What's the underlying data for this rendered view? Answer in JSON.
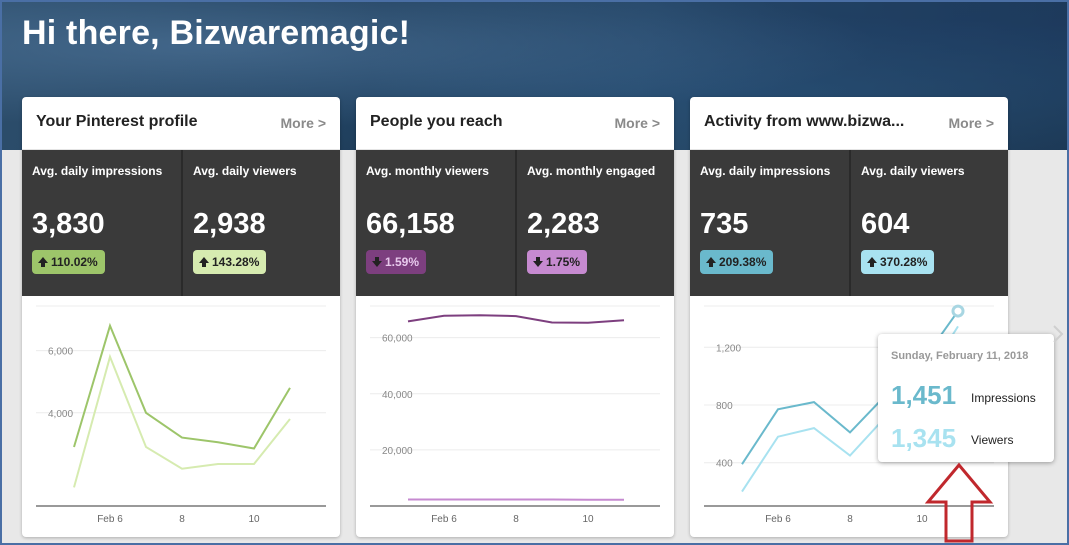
{
  "greeting": "Hi there, Bizwaremagic!",
  "cards": [
    {
      "title": "Your Pinterest profile",
      "more": "More >",
      "stats": [
        {
          "label": "Avg. daily impressions",
          "value": "3,830",
          "change": "110.02%",
          "direction": "up",
          "badge_color": "#9dc56a"
        },
        {
          "label": "Avg. daily viewers",
          "value": "2,938",
          "change": "143.28%",
          "direction": "up",
          "badge_color": "#d6ebb0"
        }
      ]
    },
    {
      "title": "People you reach",
      "more": "More >",
      "stats": [
        {
          "label": "Avg. monthly viewers",
          "value": "66,158",
          "change": "1.59%",
          "direction": "down",
          "badge_color": "#7d3f7f"
        },
        {
          "label": "Avg. monthly engaged",
          "value": "2,283",
          "change": "1.75%",
          "direction": "down",
          "badge_color": "#c68ad0"
        }
      ]
    },
    {
      "title": "Activity from www.bizwa...",
      "more": "More >",
      "stats": [
        {
          "label": "Avg. daily impressions",
          "value": "735",
          "change": "209.38%",
          "direction": "up",
          "badge_color": "#6ab9cc"
        },
        {
          "label": "Avg. daily viewers",
          "value": "604",
          "change": "370.28%",
          "direction": "up",
          "badge_color": "#a8e2f0"
        }
      ]
    }
  ],
  "chart_data": [
    {
      "type": "line",
      "x": [
        "Feb 5",
        "Feb 6",
        "Feb 7",
        "Feb 8",
        "Feb 9",
        "Feb 10",
        "Feb 11"
      ],
      "x_tick_labels": [
        "Feb 6",
        "8",
        "10"
      ],
      "y_tick_labels": [
        "4,000",
        "6,000"
      ],
      "ylim": [
        1000,
        7500
      ],
      "series": [
        {
          "values": [
            2900,
            6800,
            4000,
            3200,
            3050,
            2850,
            4800
          ],
          "color": "#9dc56a"
        },
        {
          "values": [
            1600,
            5800,
            2900,
            2200,
            2350,
            2350,
            3800
          ],
          "color": "#d6ebb0"
        }
      ]
    },
    {
      "type": "line",
      "x": [
        "Feb 5",
        "Feb 6",
        "Feb 7",
        "Feb 8",
        "Feb 9",
        "Feb 10",
        "Feb 11"
      ],
      "x_tick_labels": [
        "Feb 6",
        "8",
        "10"
      ],
      "y_tick_labels": [
        "20,000",
        "40,000",
        "60,000"
      ],
      "ylim": [
        0,
        72000
      ],
      "series": [
        {
          "values": [
            65800,
            67800,
            68000,
            67700,
            65400,
            65300,
            66200
          ],
          "color": "#7d3f7f"
        },
        {
          "values": [
            2300,
            2300,
            2300,
            2300,
            2300,
            2250,
            2250
          ],
          "color": "#c68ad0"
        }
      ]
    },
    {
      "type": "line",
      "x": [
        "Feb 5",
        "Feb 6",
        "Feb 7",
        "Feb 8",
        "Feb 9",
        "Feb 10",
        "Feb 11"
      ],
      "x_tick_labels": [
        "Feb 6",
        "8",
        "10"
      ],
      "y_tick_labels": [
        "400",
        "800",
        "1,200"
      ],
      "ylim": [
        100,
        1500
      ],
      "series": [
        {
          "values": [
            390,
            770,
            820,
            610,
            870,
            1100,
            1451
          ],
          "color": "#6ab9cc"
        },
        {
          "values": [
            200,
            580,
            640,
            450,
            720,
            950,
            1345
          ],
          "color": "#a8e2f0"
        }
      ]
    }
  ],
  "tooltip": {
    "date": "Sunday, February 11, 2018",
    "impressions_value": "1,451",
    "impressions_label": "Impressions",
    "viewers_value": "1,345",
    "viewers_label": "Viewers",
    "impressions_color": "#6ab9cc",
    "viewers_color": "#a8e2f0"
  },
  "icons": {
    "next": "chevron-right-icon",
    "annotation": "red-up-arrow-icon"
  }
}
